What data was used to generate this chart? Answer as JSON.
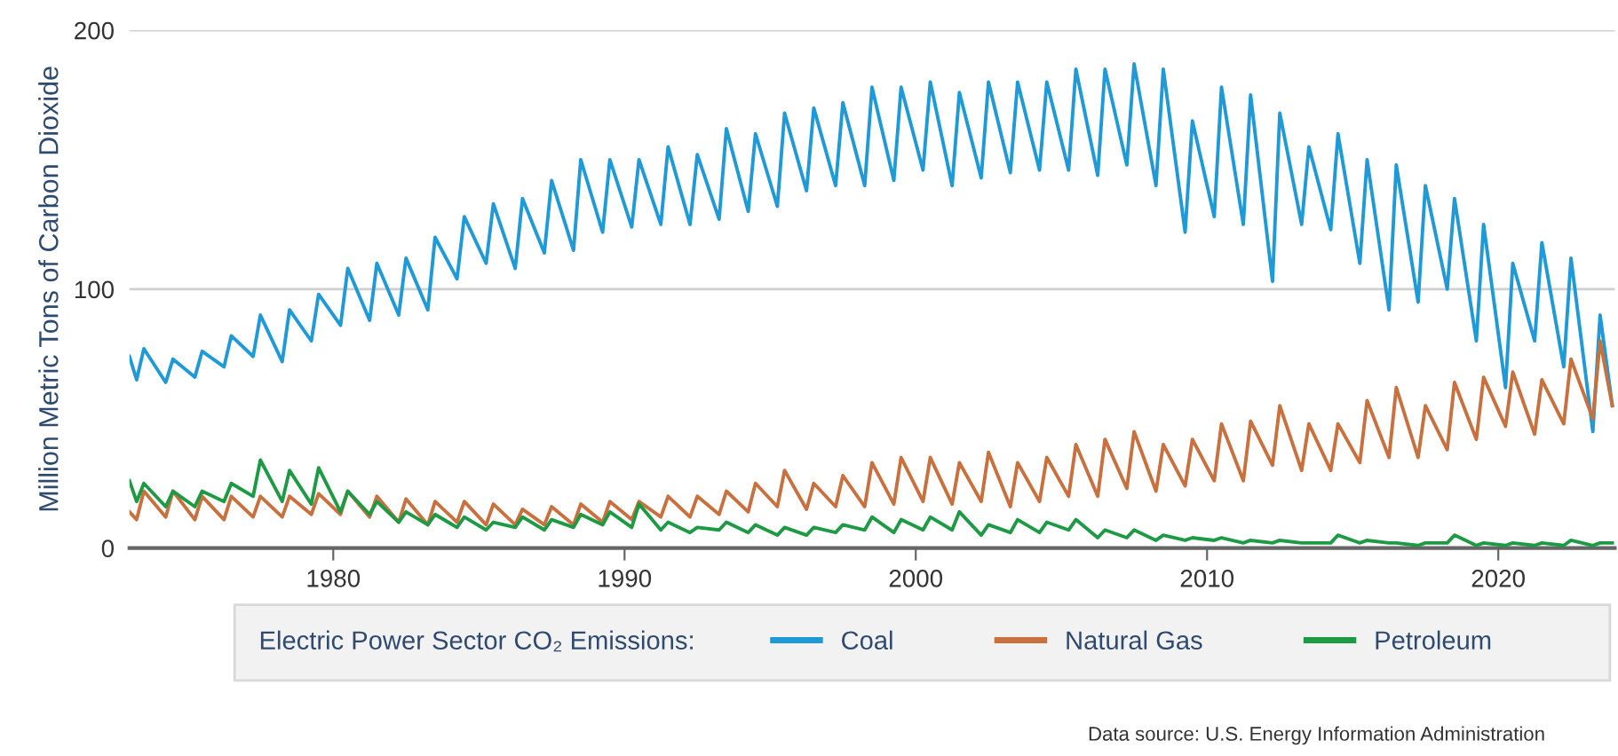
{
  "chart_data": {
    "type": "line",
    "ylabel": "Million Metric Tons of Carbon Dioxide",
    "legend_title": "Electric Power Sector CO₂ Emissions:",
    "annotations": [
      "Data source: U.S. Energy Information Administration"
    ],
    "x": [
      "1973-01",
      "1973-04",
      "1973-07",
      "1974-04",
      "1974-07",
      "1975-04",
      "1975-07",
      "1976-04",
      "1976-07",
      "1977-04",
      "1977-07",
      "1978-04",
      "1978-07",
      "1979-04",
      "1979-07",
      "1980-04",
      "1980-07",
      "1981-04",
      "1981-07",
      "1982-04",
      "1982-07",
      "1983-04",
      "1983-07",
      "1984-04",
      "1984-07",
      "1985-04",
      "1985-07",
      "1986-04",
      "1986-07",
      "1987-04",
      "1987-07",
      "1988-04",
      "1988-07",
      "1989-04",
      "1989-07",
      "1990-04",
      "1990-07",
      "1991-04",
      "1991-07",
      "1992-04",
      "1992-07",
      "1993-04",
      "1993-07",
      "1994-04",
      "1994-07",
      "1995-04",
      "1995-07",
      "1996-04",
      "1996-07",
      "1997-04",
      "1997-07",
      "1998-04",
      "1998-07",
      "1999-04",
      "1999-07",
      "2000-04",
      "2000-07",
      "2001-04",
      "2001-07",
      "2002-04",
      "2002-07",
      "2003-04",
      "2003-07",
      "2004-04",
      "2004-07",
      "2005-04",
      "2005-07",
      "2006-04",
      "2006-07",
      "2007-04",
      "2007-07",
      "2008-04",
      "2008-07",
      "2009-04",
      "2009-07",
      "2010-04",
      "2010-07",
      "2011-04",
      "2011-07",
      "2012-04",
      "2012-07",
      "2013-04",
      "2013-07",
      "2014-04",
      "2014-07",
      "2015-04",
      "2015-07",
      "2016-04",
      "2016-07",
      "2017-04",
      "2017-07",
      "2018-04",
      "2018-07",
      "2019-04",
      "2019-07",
      "2020-04",
      "2020-07",
      "2021-04",
      "2021-07",
      "2022-04",
      "2022-07",
      "2023-04",
      "2023-07",
      "2023-12"
    ],
    "series": [
      {
        "name": "Coal",
        "color": "#1f9ad6",
        "values": [
          74,
          65,
          77,
          64,
          73,
          66,
          76,
          70,
          82,
          74,
          90,
          72,
          92,
          80,
          98,
          86,
          108,
          88,
          110,
          90,
          112,
          92,
          120,
          104,
          128,
          110,
          133,
          108,
          135,
          114,
          142,
          115,
          150,
          122,
          150,
          124,
          150,
          125,
          155,
          125,
          152,
          127,
          162,
          130,
          160,
          132,
          168,
          138,
          170,
          140,
          172,
          140,
          178,
          142,
          178,
          146,
          180,
          140,
          176,
          143,
          180,
          145,
          180,
          146,
          180,
          146,
          185,
          144,
          185,
          148,
          187,
          140,
          185,
          122,
          165,
          128,
          178,
          125,
          175,
          103,
          168,
          125,
          155,
          123,
          160,
          110,
          150,
          92,
          148,
          95,
          140,
          100,
          135,
          80,
          125,
          62,
          110,
          80,
          118,
          70,
          112,
          45,
          90,
          55
        ]
      },
      {
        "name": "Natural Gas",
        "color": "#c8703e",
        "values": [
          14,
          11,
          22,
          12,
          22,
          11,
          20,
          11,
          20,
          12,
          20,
          12,
          20,
          13,
          21,
          13,
          22,
          12,
          20,
          10,
          19,
          9,
          18,
          10,
          18,
          9,
          17,
          9,
          15,
          9,
          16,
          9,
          17,
          10,
          18,
          11,
          18,
          12,
          20,
          12,
          20,
          13,
          22,
          14,
          25,
          16,
          30,
          15,
          25,
          16,
          28,
          16,
          33,
          17,
          35,
          18,
          35,
          17,
          33,
          18,
          37,
          16,
          33,
          18,
          35,
          20,
          40,
          20,
          42,
          23,
          45,
          22,
          40,
          24,
          42,
          26,
          48,
          26,
          49,
          32,
          55,
          30,
          48,
          30,
          48,
          33,
          57,
          35,
          62,
          35,
          55,
          38,
          64,
          42,
          66,
          47,
          68,
          44,
          65,
          48,
          73,
          50,
          80,
          55
        ]
      },
      {
        "name": "Petroleum",
        "color": "#1e9a45",
        "values": [
          26,
          18,
          25,
          16,
          22,
          16,
          22,
          18,
          25,
          20,
          34,
          18,
          30,
          17,
          31,
          14,
          22,
          13,
          18,
          10,
          14,
          9,
          13,
          8,
          12,
          7,
          10,
          8,
          12,
          7,
          11,
          8,
          13,
          9,
          14,
          8,
          17,
          7,
          10,
          6,
          8,
          7,
          10,
          6,
          9,
          5,
          8,
          5,
          8,
          6,
          9,
          7,
          12,
          6,
          11,
          7,
          12,
          7,
          14,
          5,
          9,
          6,
          11,
          6,
          10,
          7,
          11,
          4,
          7,
          4,
          7,
          3,
          5,
          3,
          4,
          3,
          4,
          2,
          3,
          2,
          3,
          2,
          2,
          2,
          5,
          2,
          3,
          2,
          2,
          1,
          2,
          2,
          5,
          1,
          2,
          1,
          2,
          1,
          2,
          1,
          3,
          1,
          2,
          2
        ]
      }
    ],
    "xlim": [
      "1973-01",
      "2024-01"
    ],
    "xticks": [
      "1980",
      "1990",
      "2000",
      "2010",
      "2020"
    ],
    "ylim": [
      0,
      200
    ],
    "yticks": [
      0,
      100,
      200
    ],
    "grid": "y",
    "legend": "bottom",
    "marker": "none",
    "line_style": "solid"
  }
}
